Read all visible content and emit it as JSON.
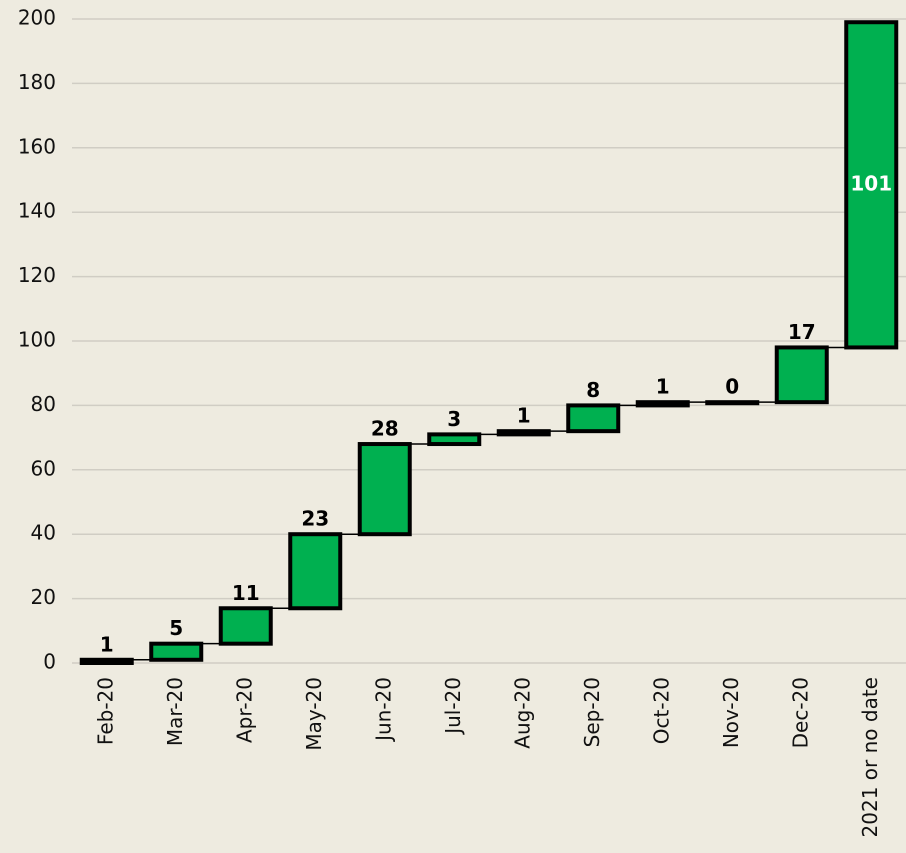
{
  "chart_data": {
    "type": "waterfall",
    "categories": [
      "Feb-20",
      "Mar-20",
      "Apr-20",
      "May-20",
      "Jun-20",
      "Jul-20",
      "Aug-20",
      "Sep-20",
      "Oct-20",
      "Nov-20",
      "Dec-20",
      "2021 or no date"
    ],
    "values": [
      1,
      5,
      11,
      23,
      28,
      3,
      1,
      8,
      1,
      0,
      17,
      101
    ],
    "color": "#00b050",
    "ylim": [
      0,
      200
    ],
    "yticks": [
      0,
      20,
      40,
      60,
      80,
      100,
      120,
      140,
      160,
      180,
      200
    ],
    "grid": true
  }
}
